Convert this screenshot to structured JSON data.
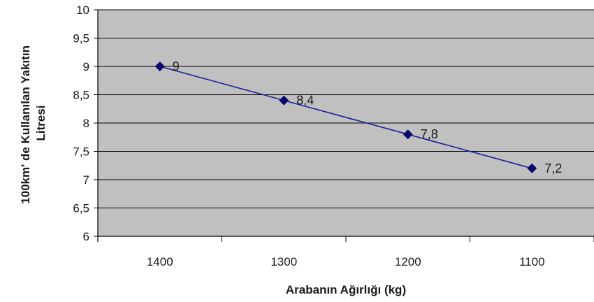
{
  "chart_data": {
    "type": "line",
    "x_categories": [
      "1400",
      "1300",
      "1200",
      "1100"
    ],
    "x_values": [
      1400,
      1300,
      1200,
      1100
    ],
    "series": [
      {
        "values": [
          9,
          8.4,
          7.8,
          7.2
        ],
        "data_labels": [
          "9",
          "8,4",
          "7,8",
          "7,2"
        ]
      }
    ],
    "y_ticks": [
      "6",
      "6,5",
      "7",
      "7,5",
      "8",
      "8,5",
      "9",
      "9,5",
      "10"
    ],
    "ylim": [
      6,
      10
    ],
    "y_step": 0.5,
    "xlabel": "Arabanın Ağırlığı (kg)",
    "ylabel_lines": [
      "100km' de Kullanılan Yakıtın",
      "Litresi"
    ],
    "grid": true,
    "legend": "none",
    "colors": {
      "plot_background": "#c0c0c0",
      "gridline": "#000000",
      "series_line": "#1f1f9a",
      "marker": "#0a0a6e"
    }
  }
}
